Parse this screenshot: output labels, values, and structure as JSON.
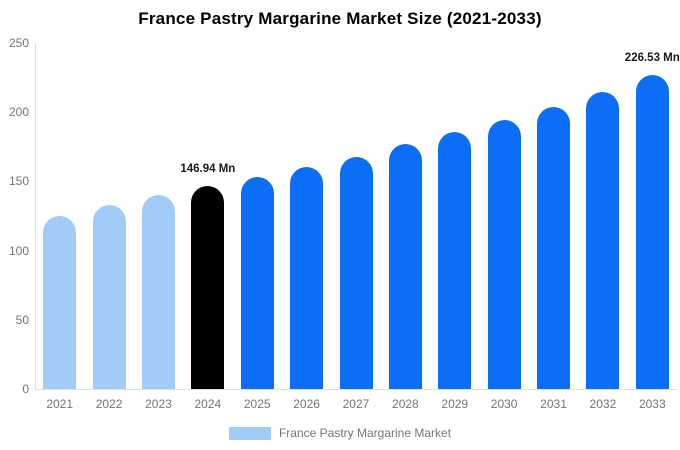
{
  "chart_data": {
    "type": "bar",
    "title": "France Pastry Margarine Market Size (2021-2033)",
    "series_name": "France Pastry Margarine Market",
    "categories": [
      "2021",
      "2022",
      "2023",
      "2024",
      "2025",
      "2026",
      "2027",
      "2028",
      "2029",
      "2030",
      "2031",
      "2032",
      "2033"
    ],
    "values": [
      125.1,
      132.7,
      139.9,
      146.94,
      153.0,
      160.4,
      167.9,
      176.8,
      185.4,
      194.4,
      203.9,
      214.5,
      226.53
    ],
    "unit": "Mn",
    "ylim": [
      0,
      250
    ],
    "yticks": [
      0,
      50,
      100,
      150,
      200,
      250
    ],
    "grid": false,
    "legend_position": "bottom",
    "bar_colors": [
      "#a2ccf8",
      "#a2ccf8",
      "#a2ccf8",
      "#000000",
      "#0b6ef5",
      "#0b6ef5",
      "#0b6ef5",
      "#0b6ef5",
      "#0b6ef5",
      "#0b6ef5",
      "#0b6ef5",
      "#0b6ef5",
      "#0b6ef5"
    ],
    "color_legend": {
      "historical": "#a2ccf8",
      "highlight": "#000000",
      "forecast": "#0b6ef5"
    },
    "data_labels": [
      {
        "category": "2024",
        "text": "146.94 Mn"
      },
      {
        "category": "2033",
        "text": "226.53 Mn"
      }
    ],
    "axis_line_color": "#e0e0e0",
    "tick_label_color": "#757575"
  },
  "legend": {
    "label": "France Pastry Margarine Market",
    "swatch_color": "#a2ccf8"
  }
}
